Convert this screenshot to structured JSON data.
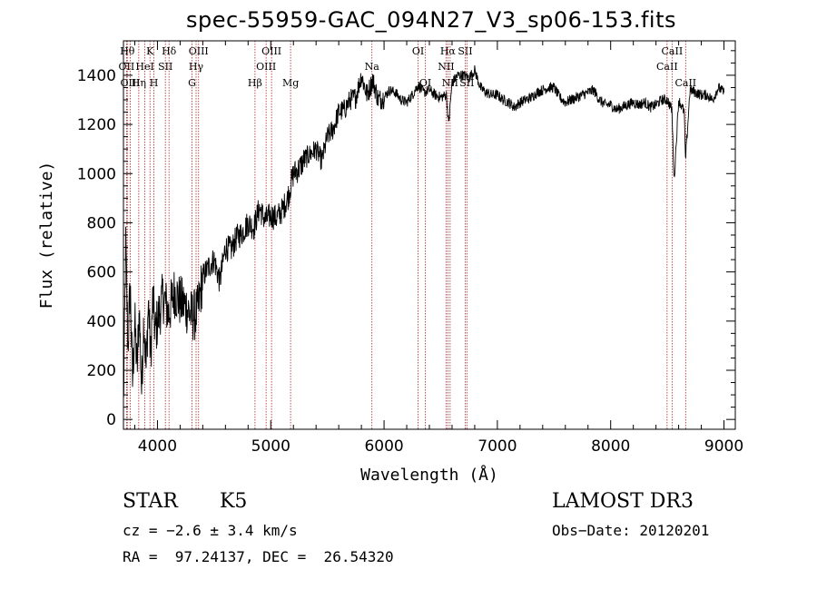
{
  "chart_data": {
    "type": "line",
    "title": "spec-55959-GAC_094N27_V3_sp06-153.fits",
    "xlabel": "Wavelength (Å)",
    "ylabel": "Flux (relative)",
    "xlim": [
      3700,
      9100
    ],
    "ylim": [
      -40,
      1540
    ],
    "xticks": [
      4000,
      5000,
      6000,
      7000,
      8000,
      9000
    ],
    "yticks": [
      0,
      200,
      400,
      600,
      800,
      1000,
      1200,
      1400
    ],
    "spectrum": {
      "name": "flux",
      "x": [
        3700,
        3720,
        3740,
        3760,
        3780,
        3800,
        3820,
        3840,
        3860,
        3880,
        3900,
        3920,
        3940,
        3960,
        3980,
        4000,
        4050,
        4100,
        4150,
        4200,
        4250,
        4300,
        4350,
        4400,
        4450,
        4500,
        4550,
        4600,
        4650,
        4700,
        4750,
        4800,
        4850,
        4900,
        4950,
        5000,
        5050,
        5100,
        5150,
        5200,
        5250,
        5300,
        5350,
        5400,
        5450,
        5500,
        5550,
        5600,
        5650,
        5700,
        5750,
        5800,
        5850,
        5900,
        5950,
        6000,
        6050,
        6100,
        6150,
        6200,
        6250,
        6300,
        6350,
        6400,
        6450,
        6500,
        6550,
        6570,
        6600,
        6650,
        6700,
        6750,
        6800,
        6850,
        6900,
        6950,
        7000,
        7050,
        7100,
        7150,
        7200,
        7250,
        7300,
        7350,
        7400,
        7450,
        7500,
        7550,
        7600,
        7650,
        7700,
        7750,
        7800,
        7850,
        7900,
        7950,
        8000,
        8050,
        8100,
        8150,
        8200,
        8250,
        8300,
        8350,
        8400,
        8450,
        8500,
        8540,
        8560,
        8600,
        8650,
        8660,
        8700,
        8750,
        8800,
        8850,
        8900,
        8950,
        9000
      ],
      "y": [
        50,
        700,
        300,
        550,
        150,
        400,
        200,
        450,
        120,
        420,
        200,
        480,
        250,
        500,
        350,
        400,
        500,
        430,
        520,
        480,
        460,
        420,
        430,
        580,
        620,
        650,
        560,
        700,
        690,
        740,
        760,
        800,
        780,
        860,
        810,
        830,
        820,
        850,
        900,
        1000,
        1020,
        1060,
        1080,
        1100,
        1050,
        1150,
        1180,
        1250,
        1260,
        1300,
        1310,
        1400,
        1320,
        1380,
        1300,
        1310,
        1340,
        1330,
        1300,
        1290,
        1320,
        1360,
        1330,
        1340,
        1320,
        1310,
        1320,
        1200,
        1370,
        1400,
        1400,
        1390,
        1420,
        1350,
        1330,
        1320,
        1320,
        1300,
        1290,
        1270,
        1290,
        1300,
        1310,
        1330,
        1340,
        1350,
        1350,
        1310,
        1290,
        1300,
        1310,
        1320,
        1330,
        1340,
        1300,
        1280,
        1280,
        1260,
        1270,
        1280,
        1290,
        1280,
        1290,
        1270,
        1280,
        1300,
        1300,
        1260,
        970,
        1300,
        1250,
        1050,
        1340,
        1330,
        1320,
        1320,
        1300,
        1350,
        1330
      ]
    },
    "lines": [
      {
        "label": "Hθ",
        "x": 3734,
        "row": 1
      },
      {
        "label": "OII",
        "x": 3727,
        "row": 2
      },
      {
        "label": "OIII",
        "x": 3760,
        "row": 3
      },
      {
        "label": "K",
        "x": 3934,
        "row": 1
      },
      {
        "label": "HeI",
        "x": 3889,
        "row": 2
      },
      {
        "label": "Hη",
        "x": 3835,
        "row": 3
      },
      {
        "label": "H",
        "x": 3969,
        "row": 3
      },
      {
        "label": "SII",
        "x": 4070,
        "row": 2
      },
      {
        "label": "Hδ",
        "x": 4102,
        "row": 1
      },
      {
        "label": "OIII",
        "x": 4363,
        "row": 1
      },
      {
        "label": "Hγ",
        "x": 4341,
        "row": 2
      },
      {
        "label": "G",
        "x": 4305,
        "row": 3
      },
      {
        "label": "OIII",
        "x": 5007,
        "row": 1
      },
      {
        "label": "OIII",
        "x": 4959,
        "row": 2
      },
      {
        "label": "Hβ",
        "x": 4861,
        "row": 3
      },
      {
        "label": "Mg",
        "x": 5175,
        "row": 3
      },
      {
        "label": "Na",
        "x": 5893,
        "row": 2
      },
      {
        "label": "OI",
        "x": 6300,
        "row": 1
      },
      {
        "label": "OI",
        "x": 6364,
        "row": 3
      },
      {
        "label": "Hα",
        "x": 6563,
        "row": 1
      },
      {
        "label": "NII",
        "x": 6548,
        "row": 2
      },
      {
        "label": "NII",
        "x": 6583,
        "row": 3
      },
      {
        "label": "SII",
        "x": 6716,
        "row": 1
      },
      {
        "label": "SII",
        "x": 6731,
        "row": 3
      },
      {
        "label": "CaII",
        "x": 8542,
        "row": 1
      },
      {
        "label": "CaII",
        "x": 8498,
        "row": 2
      },
      {
        "label": "CaII",
        "x": 8662,
        "row": 3
      }
    ]
  },
  "info": {
    "object_type": "STAR",
    "subclass": "K5",
    "survey": "LAMOST DR3",
    "cz": "cz = −2.6 ± 3.4 km/s",
    "obs_date": "Obs−Date: 20120201",
    "radec": "RA =  97.24137, DEC =  26.54320"
  },
  "colors": {
    "line_marker": "#b22222",
    "spectrum": "#000000"
  }
}
